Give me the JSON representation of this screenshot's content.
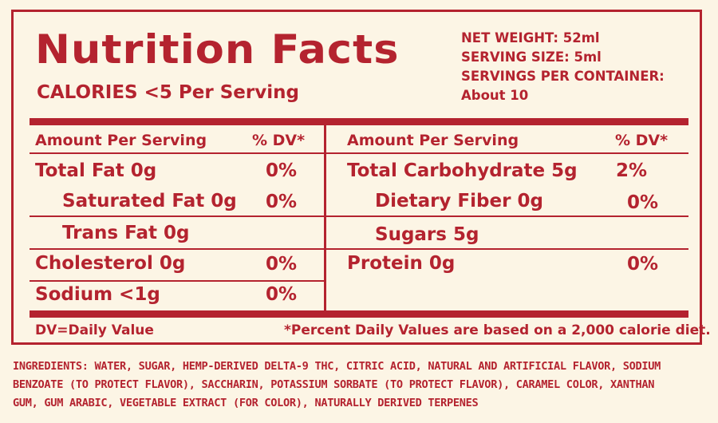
{
  "title": "Nutrition Facts",
  "calories": "CALORIES <5 Per Serving",
  "meta": {
    "net_weight": "NET WEIGHT: 52ml",
    "serving_size": "SERVING SIZE: 5ml",
    "servings_per_container": "SERVINGS PER CONTAINER:",
    "servings_value": "About 10"
  },
  "left_header": {
    "amount": "Amount Per Serving",
    "dv": "% DV*"
  },
  "right_header": {
    "amount": "Amount Per Serving",
    "dv": "% DV*"
  },
  "left_rows": [
    {
      "label": "Total Fat 0g",
      "dv": "0%"
    },
    {
      "label": "Saturated Fat 0g",
      "dv": "0%"
    },
    {
      "label": "Trans Fat 0g",
      "dv": ""
    },
    {
      "label": "Cholesterol 0g",
      "dv": "0%"
    },
    {
      "label": "Sodium <1g",
      "dv": "0%"
    }
  ],
  "right_rows": [
    {
      "label": "Total Carbohydrate 5g",
      "dv": "2%"
    },
    {
      "label": "Dietary Fiber 0g",
      "dv": "0%"
    },
    {
      "label": "Sugars 5g",
      "dv": ""
    },
    {
      "label": "Protein 0g",
      "dv": "0%"
    }
  ],
  "footer": {
    "dv_note": "DV=Daily Value",
    "percent_note": "*Percent Daily Values are based on a 2,000 calorie diet."
  },
  "ingredients": {
    "line1": "INGREDIENTS: WATER, SUGAR, HEMP-DERIVED DELTA-9 THC, CITRIC ACID, NATURAL AND ARTIFICIAL FLAVOR, SODIUM",
    "line2": "BENZOATE (TO PROTECT FLAVOR), SACCHARIN, POTASSIUM SORBATE (TO PROTECT FLAVOR), CARAMEL COLOR, XANTHAN",
    "line3": "GUM, GUM ARABIC, VEGETABLE EXTRACT (FOR COLOR), NATURALLY DERIVED TERPENES"
  },
  "colors": {
    "accent": "#b4232f",
    "background": "#fcf5e5"
  }
}
